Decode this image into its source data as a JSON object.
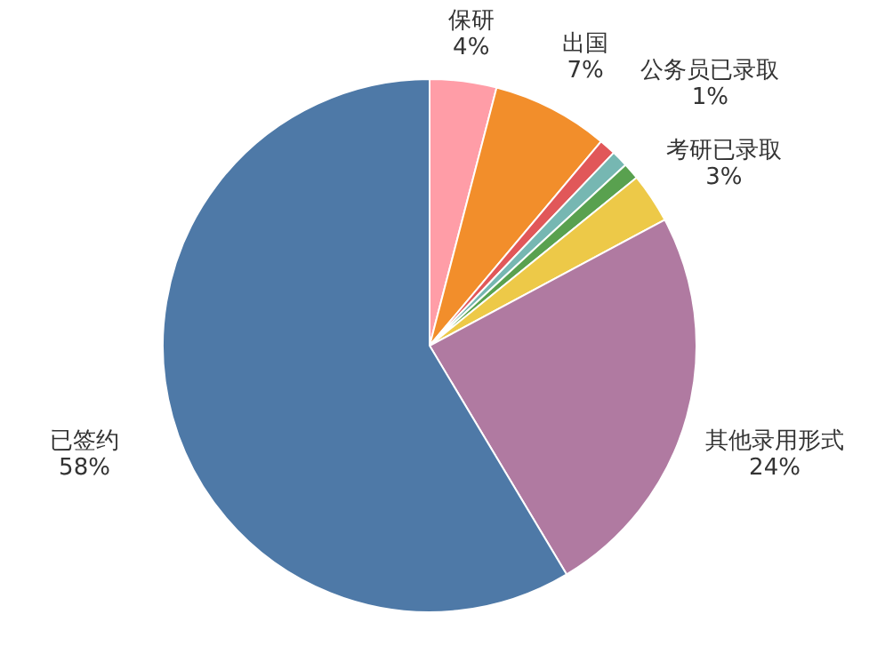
{
  "chart_data": {
    "type": "pie",
    "categories": [
      "保研",
      "出国",
      null,
      "公务员已录取",
      null,
      "考研已录取",
      "其他录用形式",
      "已签约"
    ],
    "values": [
      4,
      7,
      1,
      1,
      1,
      3,
      24,
      58
    ],
    "value_labels": [
      "4%",
      "7%",
      null,
      "1%",
      null,
      "3%",
      "24%",
      "58%"
    ],
    "colors": [
      "#ff9da7",
      "#f28e2b",
      "#e15759",
      "#76b7b2",
      "#59a14f",
      "#edc948",
      "#b07aa1",
      "#4e79a7"
    ],
    "legend": false
  }
}
